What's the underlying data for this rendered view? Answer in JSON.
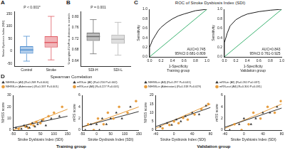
{
  "chart_data": [
    {
      "panel": "A",
      "type": "box",
      "ylabel": "Stroke Dysbiosis Index (SDI)",
      "categories": [
        "Control",
        "Stroke"
      ],
      "colors": [
        "#4f8fd0",
        "#e05a63"
      ],
      "boxes": [
        {
          "min": -40,
          "q1": -10,
          "median": 5,
          "q3": 20,
          "max": 60
        },
        {
          "min": -35,
          "q1": 15,
          "median": 35,
          "q3": 60,
          "max": 140
        }
      ],
      "ylim": [
        -60,
        160
      ],
      "yticks": [
        -50,
        0,
        50,
        100,
        150
      ],
      "grid": false,
      "annotation": "P < 0.001*"
    },
    {
      "panel": "B",
      "type": "box",
      "ylabel": "Unweighted UniFrac distance to controls",
      "categories": [
        "SDI-H",
        "SDI-L"
      ],
      "colors": [
        "#6e6e6e",
        "#b5b5b5"
      ],
      "boxes": [
        {
          "min": 0.665,
          "q1": 0.712,
          "median": 0.728,
          "q3": 0.742,
          "max": 0.79
        },
        {
          "min": 0.66,
          "q1": 0.702,
          "median": 0.718,
          "q3": 0.735,
          "max": 0.78
        }
      ],
      "ylim": [
        0.62,
        0.82
      ],
      "yticks": [
        0.64,
        0.68,
        0.72,
        0.76,
        {
          "value": 0.8,
          "label": "0.80"
        }
      ],
      "grid": false,
      "annotation": "P = 0.001"
    },
    {
      "panel": "C",
      "type": "line",
      "title": "ROC of Stroke Dysbiosis Index (SDI)",
      "xlabel": "1-Specificity",
      "ylabel": "Sensitivity",
      "xlim": [
        0,
        1
      ],
      "ylim": [
        0,
        1
      ],
      "xticks": [
        {
          "value": 0,
          "label": "0.0"
        },
        0.2,
        0.4,
        0.6,
        0.8,
        {
          "value": 1,
          "label": "1.0"
        }
      ],
      "yticks": [
        {
          "value": 0,
          "label": "0.0"
        },
        0.2,
        0.4,
        0.6,
        0.8,
        {
          "value": 1,
          "label": "1.0"
        }
      ],
      "grid": false,
      "subplots": [
        {
          "group": "Training group",
          "annotation": [
            "AUC=0.745",
            "95%CI:0.681-0.809"
          ],
          "series": [
            {
              "color": "#1a1a1a",
              "x": [
                0,
                0,
                0.05,
                0.1,
                0.15,
                0.2,
                0.3,
                0.4,
                0.5,
                0.6,
                0.8,
                1
              ],
              "values": [
                0,
                0.2,
                0.35,
                0.45,
                0.55,
                0.62,
                0.72,
                0.8,
                0.86,
                0.9,
                0.97,
                1
              ]
            },
            {
              "color": "#3cb371",
              "x": [
                0,
                1
              ],
              "values": [
                0,
                1
              ]
            }
          ]
        },
        {
          "group": "Validation group",
          "annotation": [
            "AUC=0.843",
            "95%CI:0.761-0.925"
          ],
          "series": [
            {
              "color": "#1a1a1a",
              "x": [
                0,
                0,
                0.05,
                0.1,
                0.2,
                0.3,
                0.4,
                0.6,
                0.8,
                1
              ],
              "values": [
                0,
                0.3,
                0.5,
                0.65,
                0.78,
                0.85,
                0.9,
                0.95,
                0.98,
                1
              ]
            },
            {
              "color": "#3cb371",
              "x": [
                0,
                1
              ],
              "values": [
                0,
                1
              ]
            }
          ]
        }
      ]
    },
    {
      "panel": "D",
      "type": "scatter",
      "title": "Spearman Correlation",
      "xlabel": "Stroke Dysbiosis Index (SDI)",
      "grid": false,
      "groups": [
        {
          "group": "Training group",
          "xlim": [
            -50,
            150
          ],
          "xticks": [
            -50,
            0,
            50,
            100,
            150
          ],
          "subplots": [
            {
              "ylabel": "NIHSS score",
              "ylim": [
                0,
                30
              ],
              "yticks": [
                0,
                10,
                20,
                30
              ],
              "series": [
                {
                  "name": "NIHSS-in (All) (R=0.208 P=0.004)",
                  "color": "#333333",
                  "marker": "triangle",
                  "x": [
                    -40,
                    -20,
                    -10,
                    0,
                    10,
                    20,
                    30,
                    40,
                    55,
                    70,
                    90,
                    120
                  ],
                  "values": [
                    2,
                    1,
                    4,
                    3,
                    2,
                    6,
                    3,
                    5,
                    8,
                    4,
                    10,
                    12
                  ],
                  "fit": {
                    "x": [
                      -50,
                      150
                    ],
                    "values": [
                      2,
                      12
                    ]
                  }
                },
                {
                  "name": "NIHSS-in (Admission) (R=0.337 P=0.001)",
                  "color": "#e69b3a",
                  "marker": "circle",
                  "x": [
                    -30,
                    -5,
                    5,
                    15,
                    25,
                    35,
                    50,
                    60,
                    80,
                    100,
                    130
                  ],
                  "values": [
                    1,
                    3,
                    2,
                    5,
                    4,
                    7,
                    6,
                    9,
                    12,
                    15,
                    20
                  ],
                  "fit": {
                    "x": [
                      -50,
                      150
                    ],
                    "values": [
                      0,
                      18
                    ]
                  }
                }
              ]
            },
            {
              "ylabel": "mRS score",
              "ylim": [
                0,
                6
              ],
              "yticks": [
                0,
                2,
                4,
                6
              ],
              "series": [
                {
                  "name": "mRS-in (All) (R=0.216 P=0.002)",
                  "color": "#333333",
                  "marker": "triangle",
                  "x": [
                    -40,
                    -20,
                    0,
                    10,
                    20,
                    35,
                    50,
                    70,
                    90,
                    120
                  ],
                  "values": [
                    0,
                    1,
                    1,
                    0,
                    2,
                    1,
                    2,
                    3,
                    2,
                    4
                  ],
                  "fit": {
                    "x": [
                      -50,
                      150
                    ],
                    "values": [
                      0.6,
                      3.2
                    ]
                  }
                },
                {
                  "name": "mRS-out (All) (R=0.227 P=0.001)",
                  "color": "#e69b3a",
                  "marker": "circle",
                  "x": [
                    -30,
                    -10,
                    5,
                    25,
                    40,
                    60,
                    80,
                    110,
                    140
                  ],
                  "values": [
                    1,
                    0,
                    2,
                    1,
                    3,
                    2,
                    4,
                    3,
                    5
                  ],
                  "fit": {
                    "x": [
                      -50,
                      150
                    ],
                    "values": [
                      0.5,
                      4
                    ]
                  }
                }
              ]
            }
          ]
        },
        {
          "group": "Validation group",
          "xlim": [
            -40,
            80
          ],
          "xticks": [
            -40,
            0,
            40,
            80
          ],
          "subplots": [
            {
              "ylabel": "NIHSS score",
              "ylim": [
                0,
                20
              ],
              "yticks": [
                0,
                5,
                10,
                15,
                20
              ],
              "series": [
                {
                  "name": "NIHSS-in (All) (R=0.297 P=0.041)",
                  "color": "#333333",
                  "marker": "triangle",
                  "x": [
                    -30,
                    -15,
                    -5,
                    5,
                    15,
                    25,
                    40,
                    55,
                    70
                  ],
                  "values": [
                    2,
                    4,
                    3,
                    6,
                    5,
                    8,
                    10,
                    9,
                    14
                  ],
                  "fit": {
                    "x": [
                      -40,
                      80
                    ],
                    "values": [
                      2,
                      13
                    ]
                  }
                },
                {
                  "name": "NIHSS-in (Admission) (R=0.318 P=0.029)",
                  "color": "#e69b3a",
                  "marker": "circle",
                  "x": [
                    -25,
                    -10,
                    0,
                    10,
                    20,
                    30,
                    45,
                    60,
                    75
                  ],
                  "values": [
                    1,
                    3,
                    5,
                    4,
                    7,
                    6,
                    9,
                    12,
                    15
                  ],
                  "fit": {
                    "x": [
                      -40,
                      80
                    ],
                    "values": [
                      1,
                      15
                    ]
                  }
                }
              ]
            },
            {
              "ylabel": "mRS score",
              "ylim": [
                0,
                6
              ],
              "yticks": [
                0,
                2,
                4,
                6
              ],
              "series": [
                {
                  "name": "mRS-in (All) (R=0.261 P=0.037)",
                  "color": "#333333",
                  "marker": "triangle",
                  "x": [
                    -30,
                    -10,
                    0,
                    15,
                    25,
                    40,
                    55,
                    70
                  ],
                  "values": [
                    0,
                    1,
                    2,
                    1,
                    2,
                    3,
                    3,
                    4
                  ],
                  "fit": {
                    "x": [
                      -40,
                      80
                    ],
                    "values": [
                      0.5,
                      3.8
                    ]
                  }
                },
                {
                  "name": "mRS-out (All) (R=0.300 P=0.031)",
                  "color": "#e69b3a",
                  "marker": "circle",
                  "x": [
                    -20,
                    -5,
                    10,
                    20,
                    35,
                    50,
                    65,
                    78
                  ],
                  "values": [
                    1,
                    0,
                    1,
                    3,
                    2,
                    4,
                    3,
                    5
                  ],
                  "fit": {
                    "x": [
                      -40,
                      80
                    ],
                    "values": [
                      0.3,
                      4.5
                    ]
                  }
                }
              ]
            }
          ]
        }
      ]
    }
  ]
}
